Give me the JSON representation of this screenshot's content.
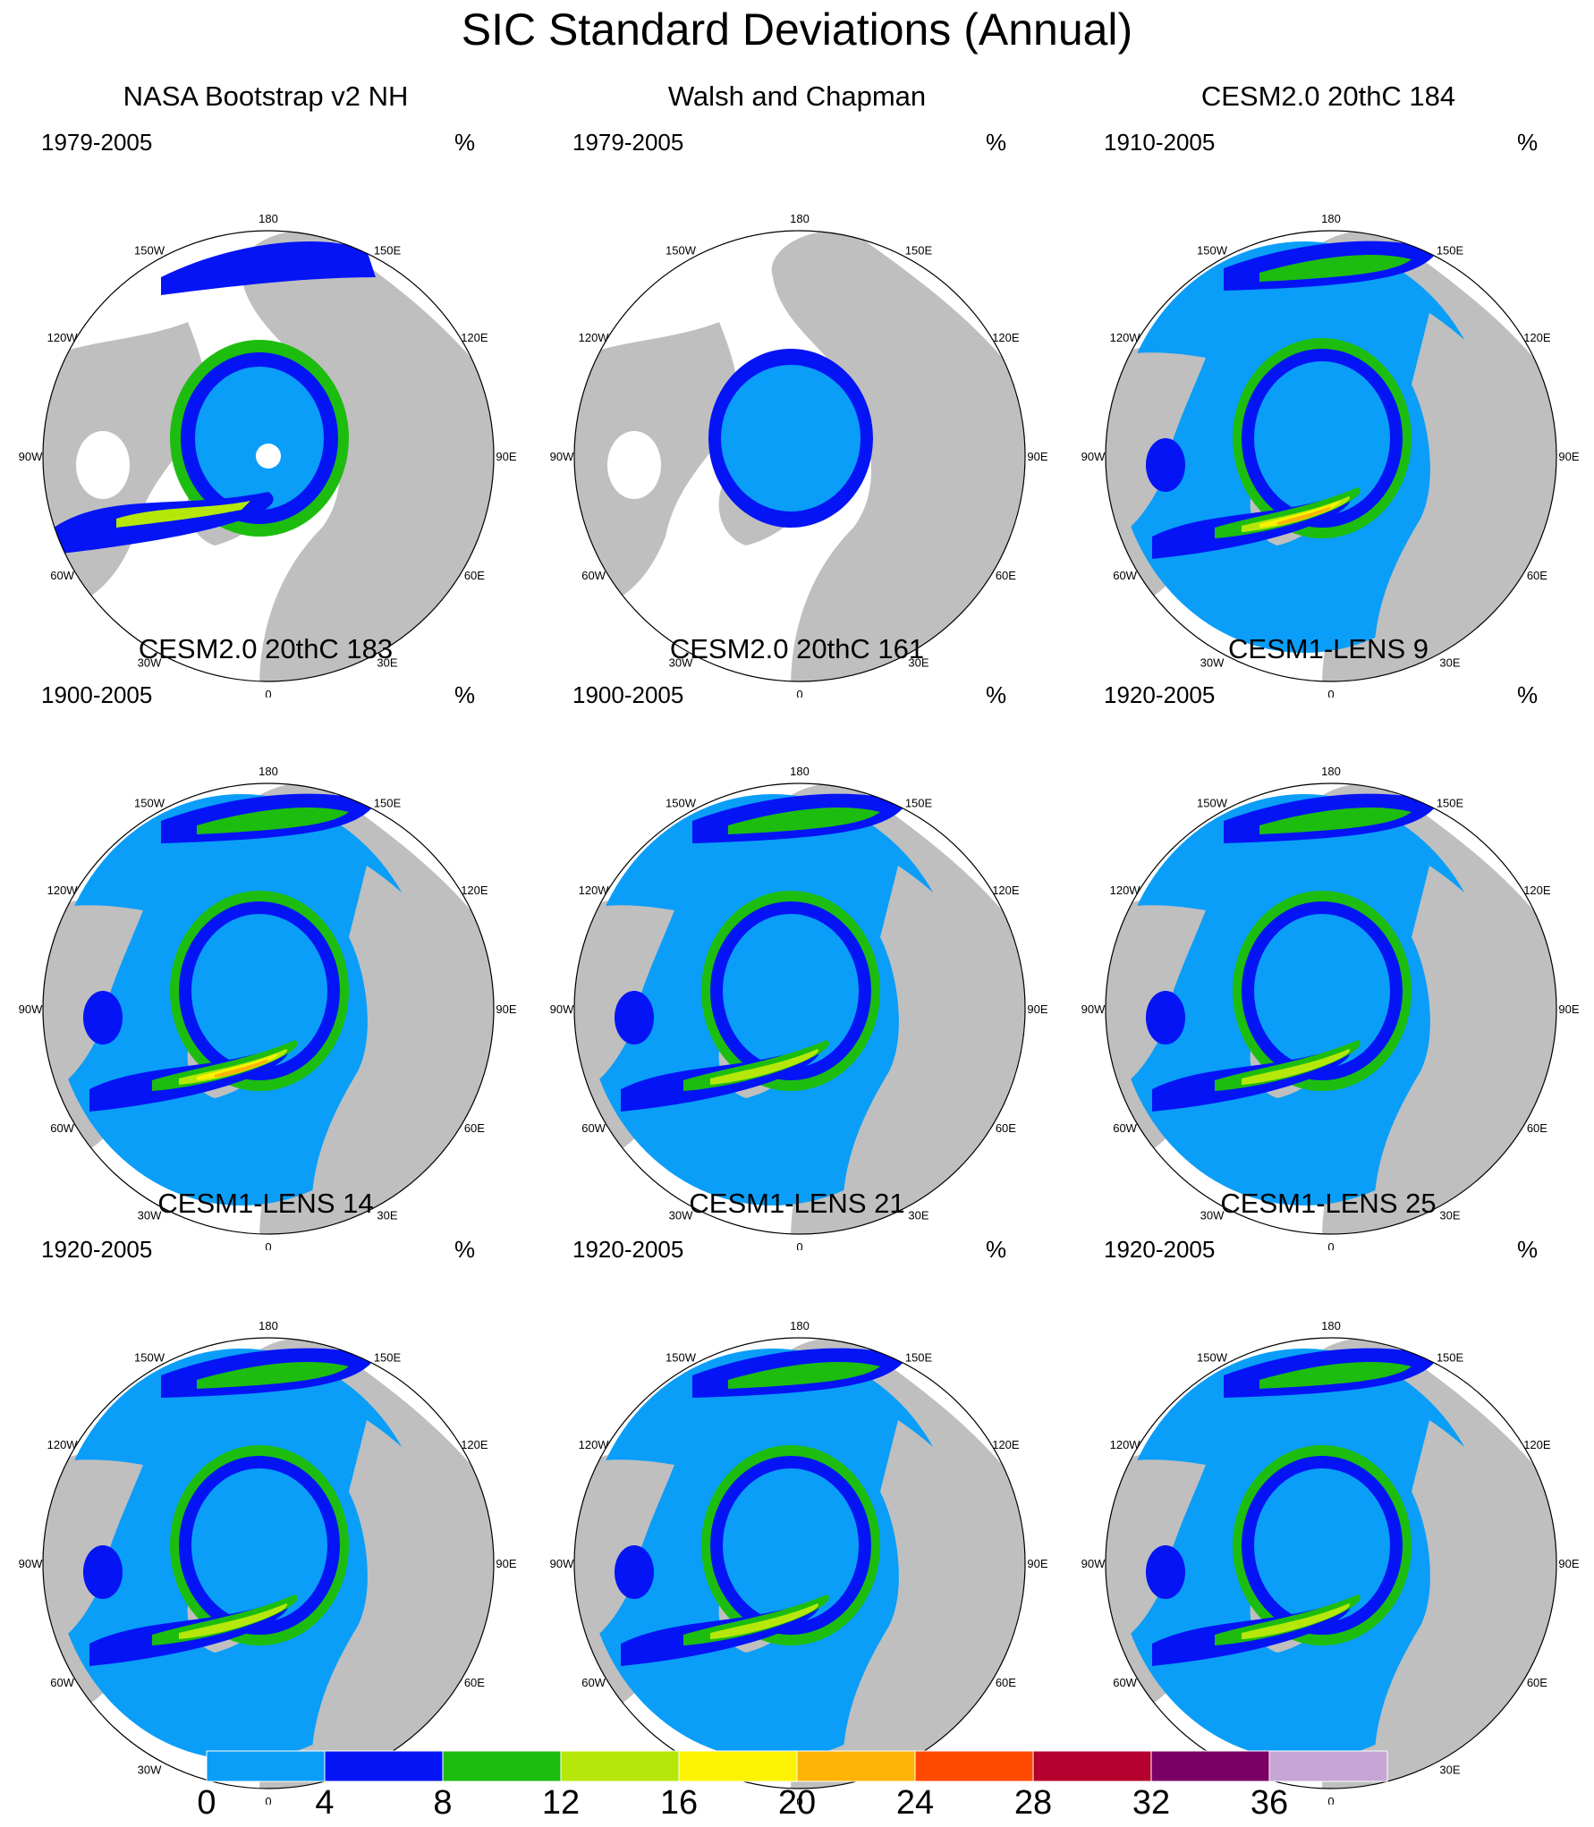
{
  "title": "SIC Standard Deviations (Annual)",
  "longitude_labels": [
    "180",
    "150E",
    "120E",
    "90E",
    "60E",
    "30E",
    "0",
    "30W",
    "60W",
    "90W",
    "120W",
    "150W"
  ],
  "panels": [
    {
      "title": "NASA Bootstrap v2 NH",
      "years": "1979-2005",
      "unit": "%",
      "variant": "obs_bootstrap"
    },
    {
      "title": "Walsh and Chapman",
      "years": "1979-2005",
      "unit": "%",
      "variant": "obs_walsh"
    },
    {
      "title": "CESM2.0 20thC 184",
      "years": "1910-2005",
      "unit": "%",
      "variant": "model_high"
    },
    {
      "title": "CESM2.0 20thC 183",
      "years": "1900-2005",
      "unit": "%",
      "variant": "model_high"
    },
    {
      "title": "CESM2.0 20thC 161",
      "years": "1900-2005",
      "unit": "%",
      "variant": "model"
    },
    {
      "title": "CESM1-LENS 9",
      "years": "1920-2005",
      "unit": "%",
      "variant": "model"
    },
    {
      "title": "CESM1-LENS 14",
      "years": "1920-2005",
      "unit": "%",
      "variant": "model"
    },
    {
      "title": "CESM1-LENS 21",
      "years": "1920-2005",
      "unit": "%",
      "variant": "model"
    },
    {
      "title": "CESM1-LENS 25",
      "years": "1920-2005",
      "unit": "%",
      "variant": "model"
    }
  ],
  "colorbar": {
    "labels": [
      "0",
      "4",
      "8",
      "12",
      "16",
      "20",
      "24",
      "28",
      "32",
      "36"
    ],
    "colors": [
      "#0a9ef8",
      "#0414f5",
      "#1dbd0f",
      "#b5e80a",
      "#fdf201",
      "#fdb407",
      "#ff4a02",
      "#b5002e",
      "#7a0065",
      "#c7a6d6"
    ]
  },
  "colors": {
    "land": "#bfbfbf",
    "ocean": "#ffffff",
    "coast": "#000000"
  }
}
